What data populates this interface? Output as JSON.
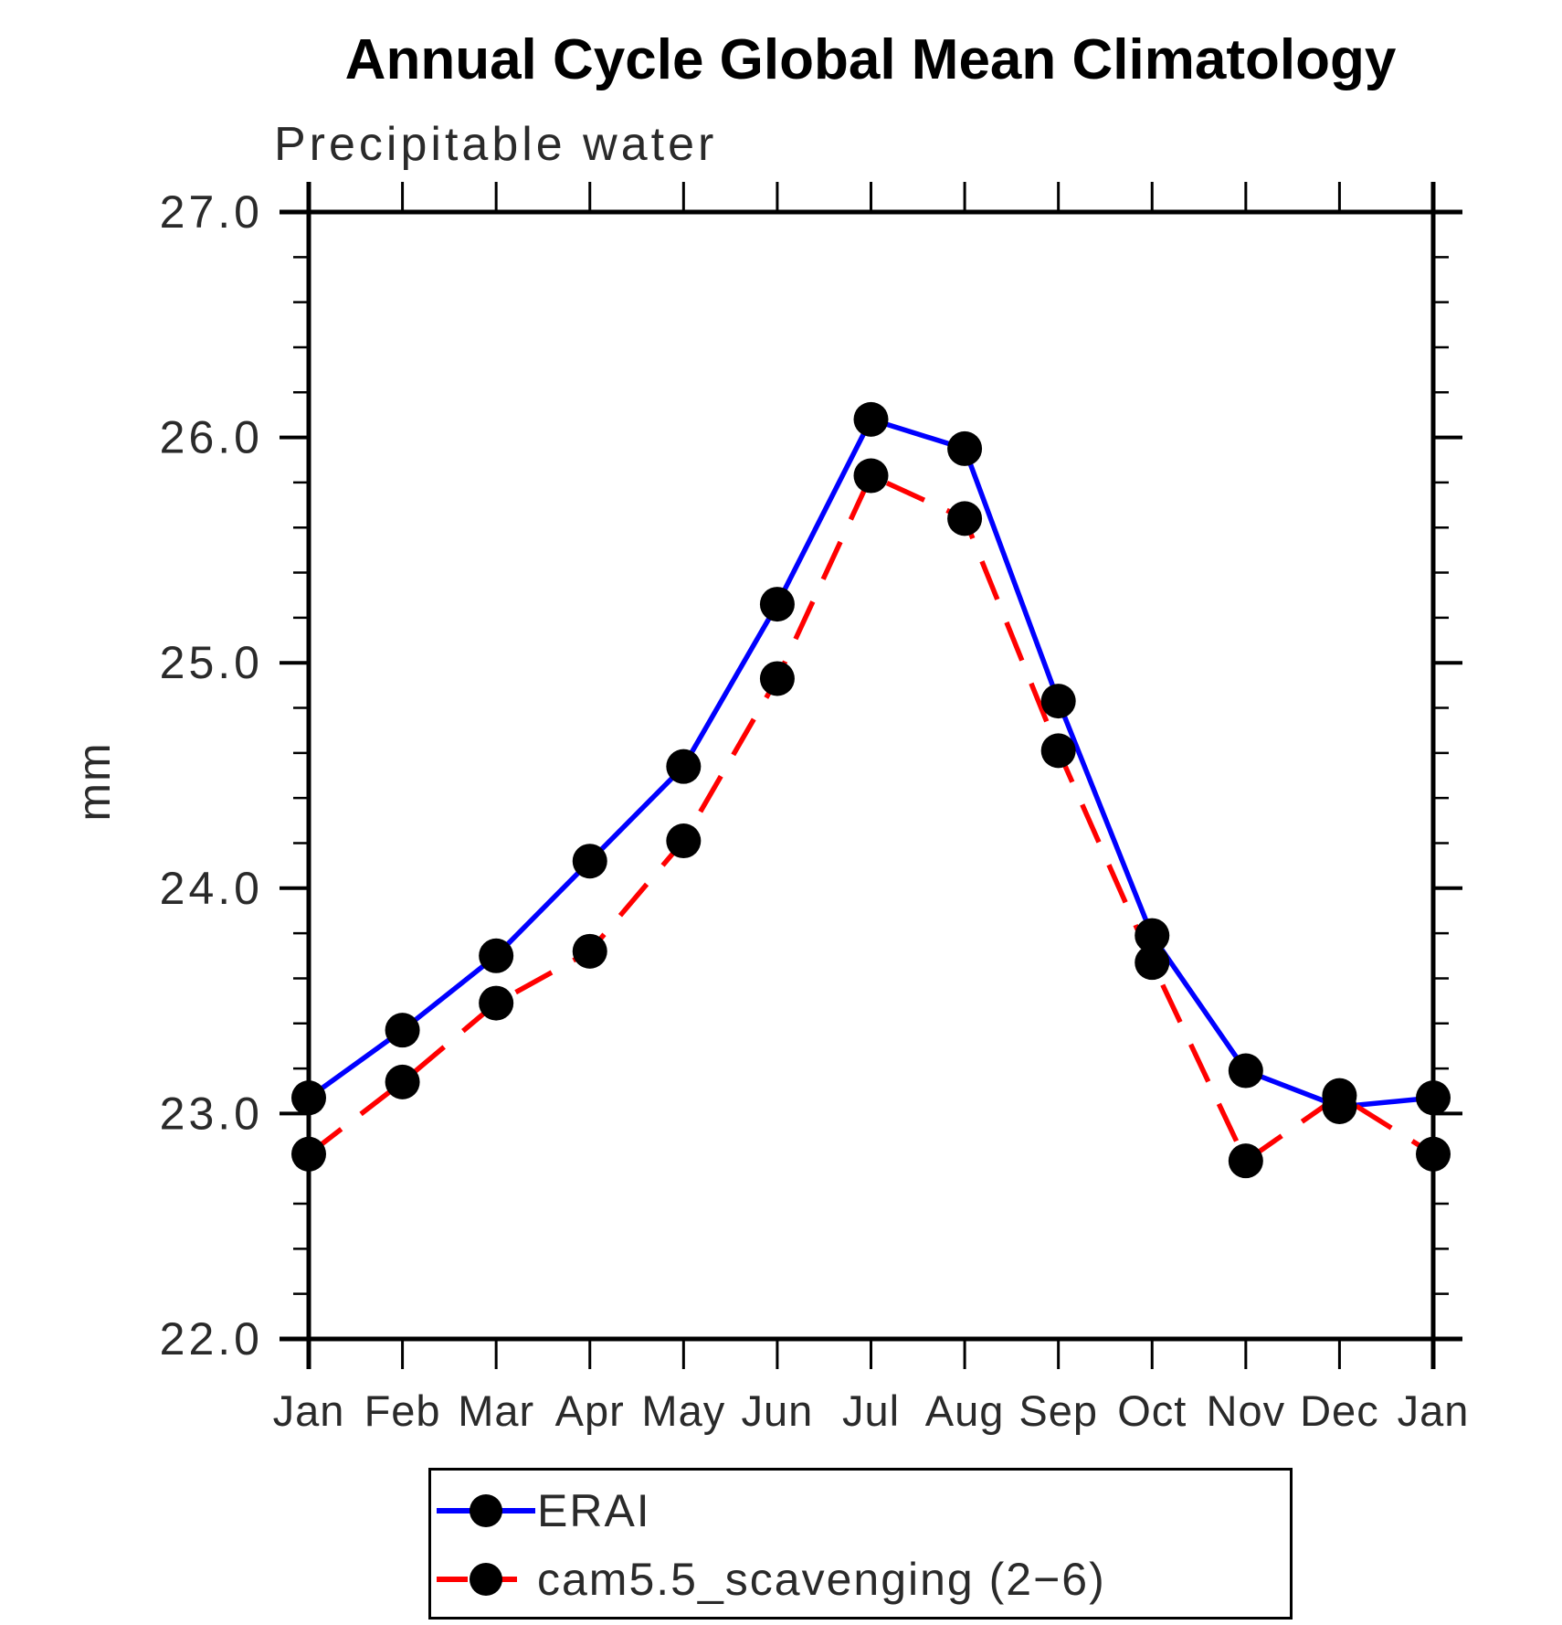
{
  "title": "Annual Cycle Global Mean Climatology",
  "subtitle": "Precipitable water",
  "y_axis_label": "mm",
  "chart_data": {
    "type": "line",
    "x_categories": [
      "Jan",
      "Feb",
      "Mar",
      "Apr",
      "May",
      "Jun",
      "Jul",
      "Aug",
      "Sep",
      "Oct",
      "Nov",
      "Dec",
      "Jan"
    ],
    "ylim": [
      22.0,
      27.0
    ],
    "y_major_ticks": [
      "22.0",
      "23.0",
      "24.0",
      "25.0",
      "26.0",
      "27.0"
    ],
    "y_minor_tick_interval": 0.2,
    "grid": false,
    "legend_position": "bottom-center",
    "axis_color": "#000000",
    "marker_color": "#000000",
    "series": [
      {
        "name": "ERAI",
        "color": "#0000ff",
        "line_style": "solid",
        "marker": "filled-circle",
        "values": [
          23.07,
          23.37,
          23.7,
          24.12,
          24.54,
          25.26,
          26.08,
          25.95,
          24.83,
          23.79,
          23.19,
          23.03,
          23.07
        ]
      },
      {
        "name": "cam5.5_scavenging (2−6)",
        "color": "#ff0000",
        "line_style": "dashed",
        "marker": "filled-circle",
        "values": [
          22.82,
          23.14,
          23.49,
          23.72,
          24.21,
          24.93,
          25.83,
          25.64,
          24.61,
          23.67,
          22.79,
          23.08,
          22.82
        ]
      }
    ]
  }
}
